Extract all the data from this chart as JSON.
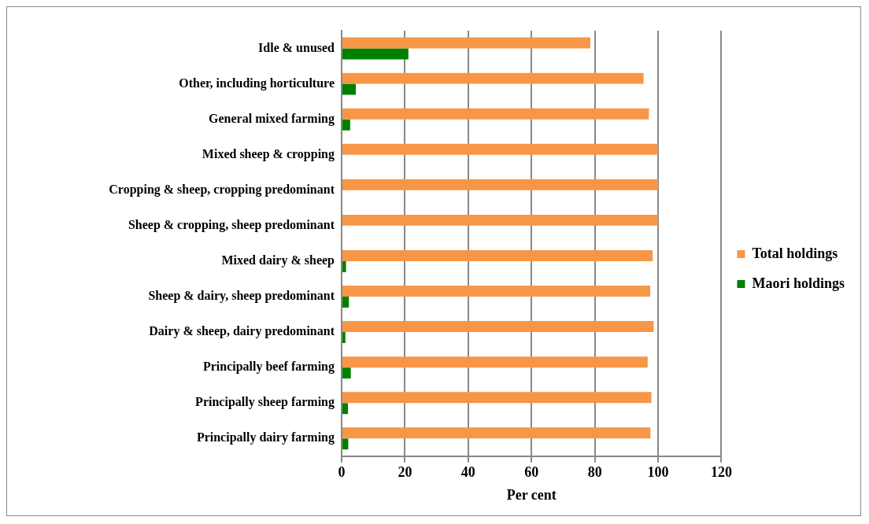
{
  "chart_data": {
    "type": "bar",
    "orientation": "horizontal",
    "xlabel": "Per cent",
    "categories": [
      "Idle & unused",
      "Other, including horticulture",
      "General mixed farming",
      "Mixed sheep & cropping",
      "Cropping & sheep, cropping predominant",
      "Sheep & cropping, sheep predominant",
      "Mixed dairy & sheep",
      "Sheep & dairy, sheep predominant",
      "Dairy & sheep, dairy predominant",
      "Principally beef farming",
      "Principally sheep farming",
      "Principally dairy farming"
    ],
    "series": [
      {
        "name": "Total holdings",
        "color": "#f79646",
        "values": [
          78.6,
          95.4,
          97.1,
          100,
          100,
          100,
          98.3,
          97.5,
          98.6,
          96.7,
          97.9,
          97.6
        ]
      },
      {
        "name": "Maori holdings",
        "color": "#008000",
        "values": [
          21.1,
          4.5,
          2.7,
          0,
          0,
          0,
          1.4,
          2.3,
          1.2,
          2.9,
          2.0,
          2.1
        ]
      }
    ],
    "xlim": [
      0,
      120
    ],
    "xticks": [
      0,
      20,
      40,
      60,
      80,
      100,
      120
    ],
    "grid": "x",
    "legend": "right"
  }
}
